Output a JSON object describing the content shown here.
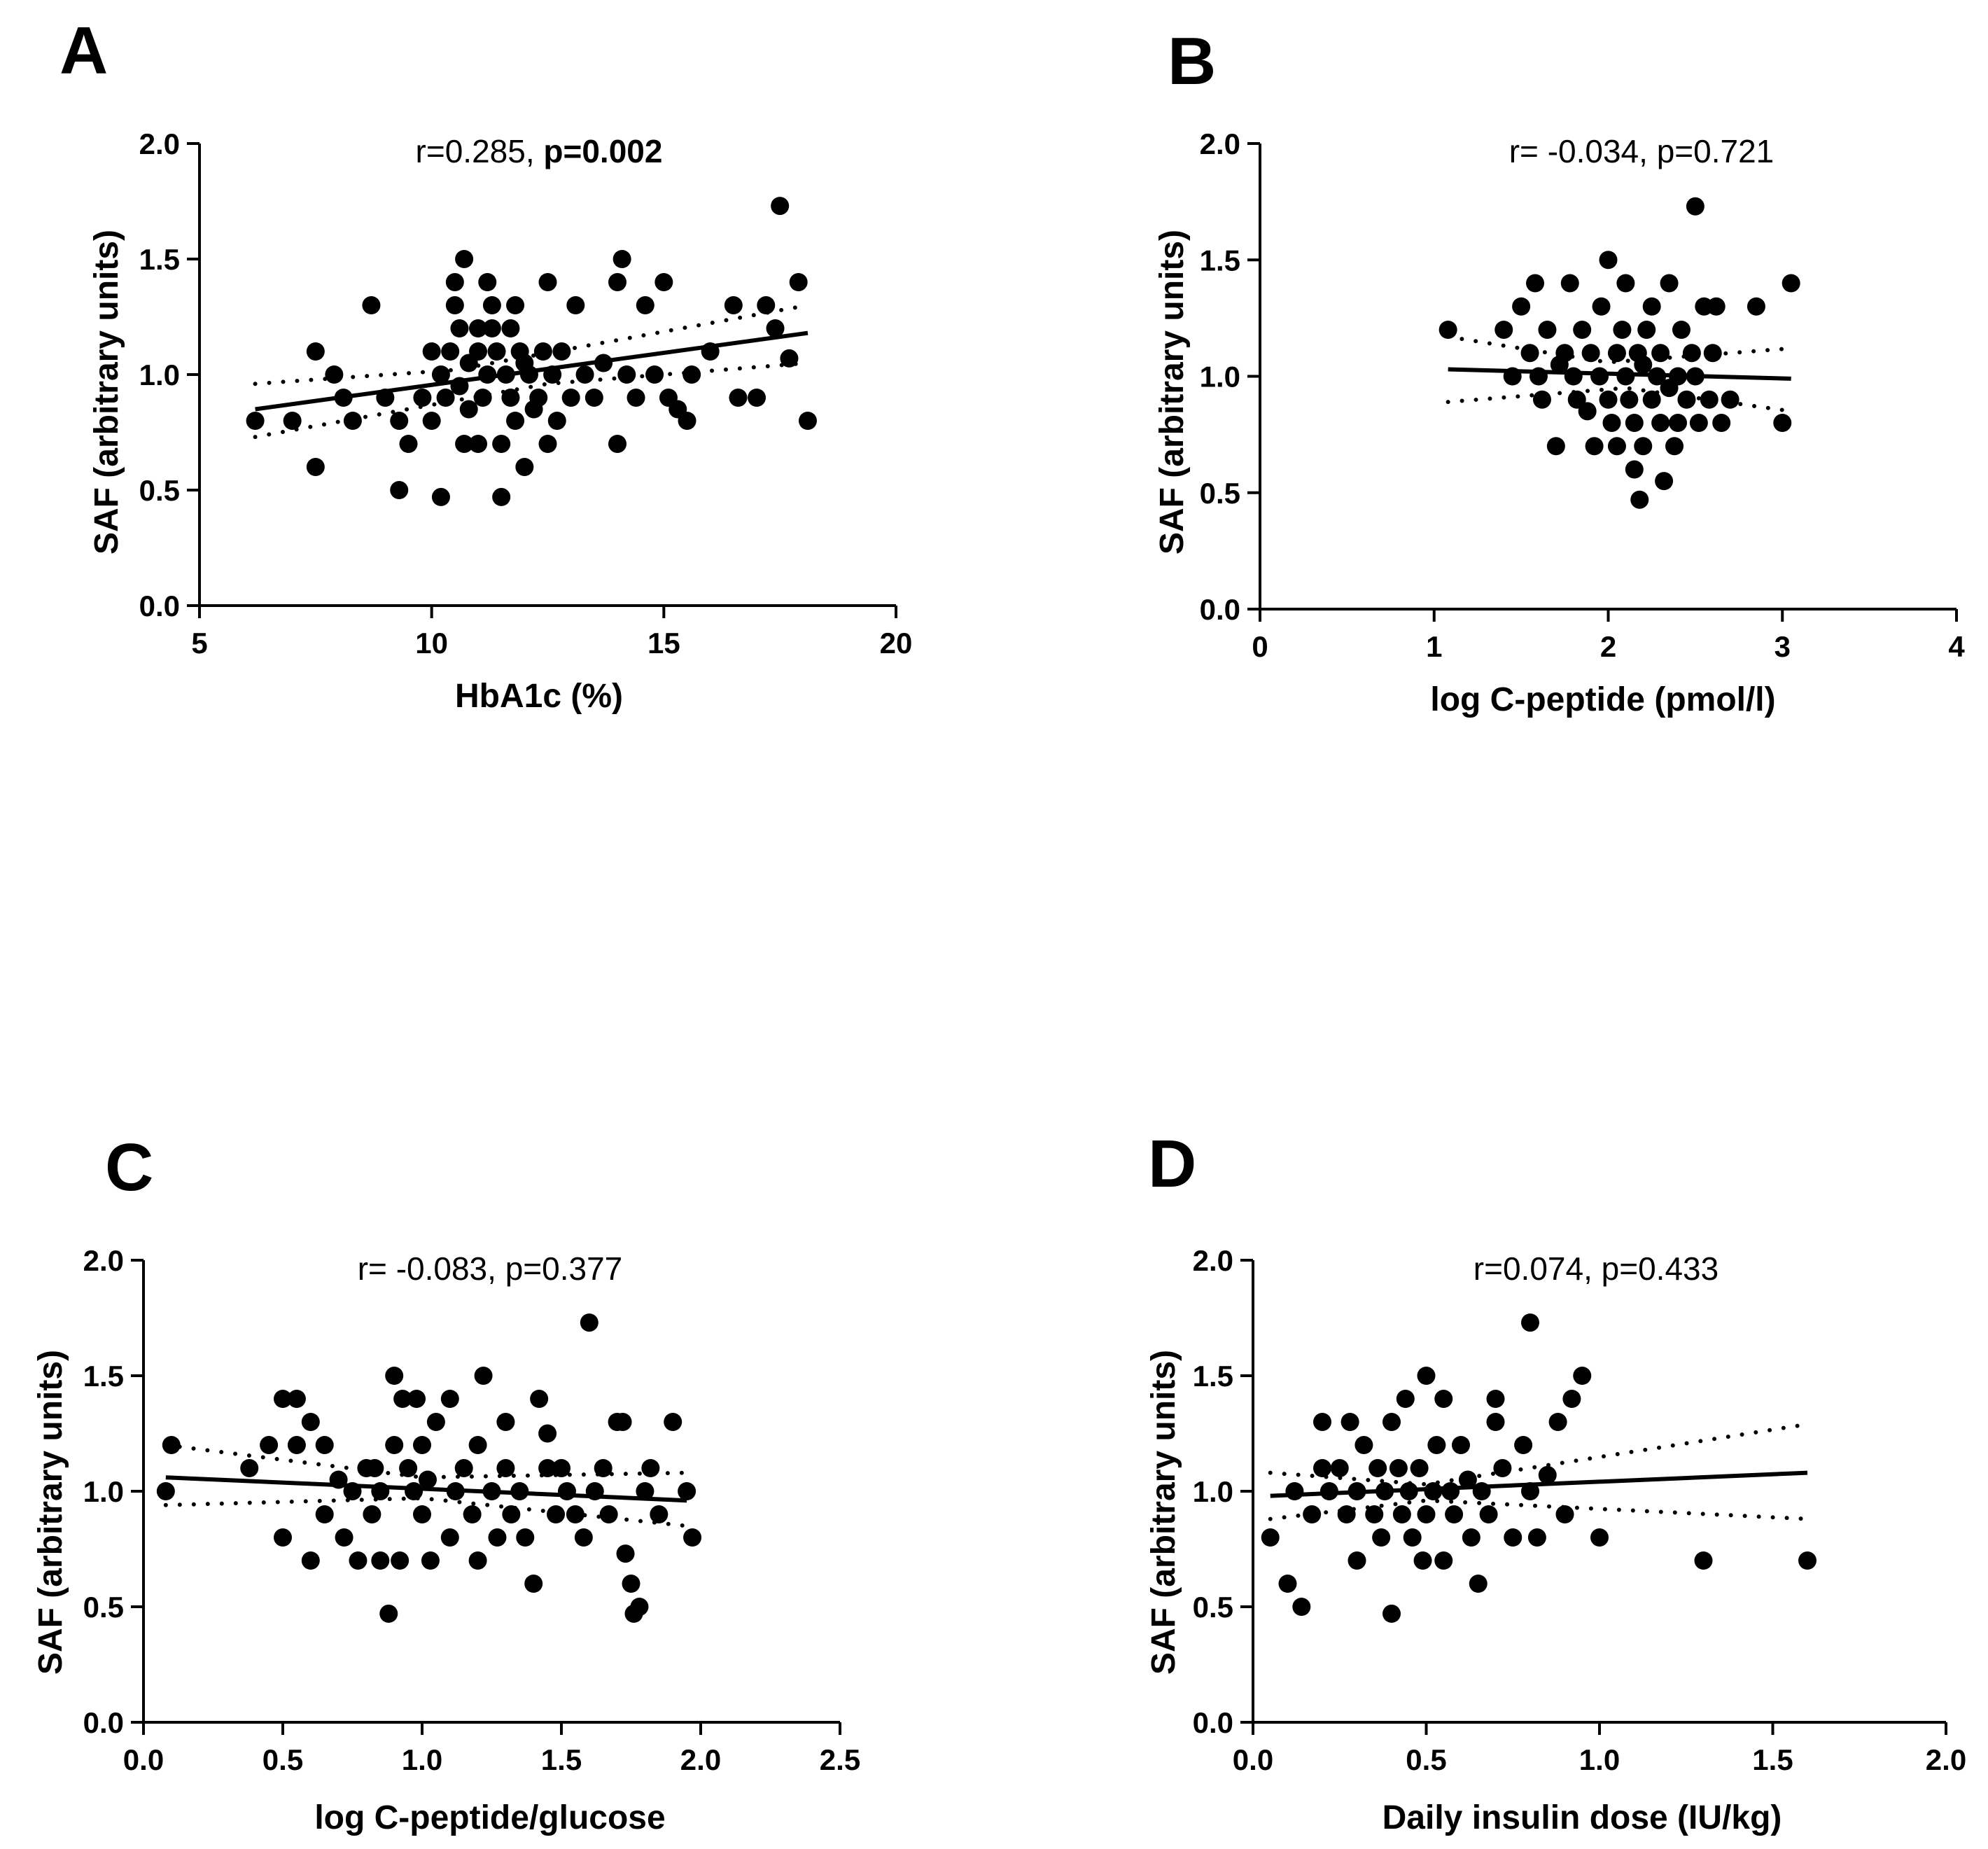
{
  "chart_data": [
    {
      "panel": "A",
      "type": "scatter",
      "stat": {
        "r_text": "r=0.285, ",
        "p_text": "p=0.002",
        "p_bold": true
      },
      "xlabel": "HbA1c (%)",
      "ylabel": "SAF (arbitrary units)",
      "xlim": [
        5,
        20
      ],
      "ylim": [
        0,
        2
      ],
      "xticks": [
        "5",
        "10",
        "15",
        "20"
      ],
      "yticks": [
        "0.0",
        "0.5",
        "1.0",
        "1.5",
        "2.0"
      ],
      "fit": {
        "x": [
          6.2,
          18.1
        ],
        "y": [
          0.85,
          1.18
        ]
      },
      "ci_upper": {
        "x": [
          6.2,
          10.5,
          18.1
        ],
        "y": [
          0.96,
          1.02,
          1.3
        ]
      },
      "ci_lower": {
        "x": [
          6.2,
          12.5,
          18.1
        ],
        "y": [
          0.73,
          0.96,
          1.05
        ]
      },
      "points": [
        [
          6.2,
          0.8
        ],
        [
          7.0,
          0.8
        ],
        [
          7.5,
          0.6
        ],
        [
          7.5,
          1.1
        ],
        [
          7.9,
          1.0
        ],
        [
          8.1,
          0.9
        ],
        [
          8.3,
          0.8
        ],
        [
          8.7,
          1.3
        ],
        [
          9.0,
          0.9
        ],
        [
          9.3,
          0.5
        ],
        [
          9.5,
          0.7
        ],
        [
          9.3,
          0.8
        ],
        [
          9.8,
          0.9
        ],
        [
          10.0,
          1.1
        ],
        [
          10.0,
          0.8
        ],
        [
          10.2,
          0.47
        ],
        [
          10.2,
          1.0
        ],
        [
          10.3,
          0.9
        ],
        [
          10.4,
          1.1
        ],
        [
          10.5,
          1.3
        ],
        [
          10.5,
          1.4
        ],
        [
          10.6,
          1.2
        ],
        [
          10.6,
          0.95
        ],
        [
          10.7,
          1.5
        ],
        [
          10.7,
          0.7
        ],
        [
          10.8,
          1.05
        ],
        [
          10.8,
          0.85
        ],
        [
          11.0,
          1.1
        ],
        [
          11.0,
          1.2
        ],
        [
          11.0,
          0.7
        ],
        [
          11.1,
          0.9
        ],
        [
          11.2,
          1.0
        ],
        [
          11.2,
          1.4
        ],
        [
          11.3,
          1.3
        ],
        [
          11.3,
          1.2
        ],
        [
          11.4,
          1.1
        ],
        [
          11.5,
          0.7
        ],
        [
          11.5,
          0.47
        ],
        [
          11.6,
          1.0
        ],
        [
          11.7,
          1.2
        ],
        [
          11.7,
          0.9
        ],
        [
          11.8,
          0.8
        ],
        [
          11.8,
          1.3
        ],
        [
          11.9,
          1.1
        ],
        [
          12.0,
          1.05
        ],
        [
          12.0,
          0.6
        ],
        [
          12.1,
          1.0
        ],
        [
          12.2,
          0.85
        ],
        [
          12.3,
          0.9
        ],
        [
          12.4,
          1.1
        ],
        [
          12.5,
          1.4
        ],
        [
          12.5,
          0.7
        ],
        [
          12.6,
          1.0
        ],
        [
          12.7,
          0.8
        ],
        [
          12.8,
          1.1
        ],
        [
          13.0,
          0.9
        ],
        [
          13.1,
          1.3
        ],
        [
          13.3,
          1.0
        ],
        [
          13.5,
          0.9
        ],
        [
          13.7,
          1.05
        ],
        [
          14.0,
          1.4
        ],
        [
          14.0,
          0.7
        ],
        [
          14.1,
          1.5
        ],
        [
          14.2,
          1.0
        ],
        [
          14.4,
          0.9
        ],
        [
          14.6,
          1.3
        ],
        [
          14.8,
          1.0
        ],
        [
          15.0,
          1.4
        ],
        [
          15.1,
          0.9
        ],
        [
          15.3,
          0.85
        ],
        [
          15.5,
          0.8
        ],
        [
          15.6,
          1.0
        ],
        [
          16.0,
          1.1
        ],
        [
          16.5,
          1.3
        ],
        [
          16.6,
          0.9
        ],
        [
          17.0,
          0.9
        ],
        [
          17.2,
          1.3
        ],
        [
          17.4,
          1.2
        ],
        [
          17.5,
          1.73
        ],
        [
          17.7,
          1.07
        ],
        [
          17.9,
          1.4
        ],
        [
          18.1,
          0.8
        ]
      ]
    },
    {
      "panel": "B",
      "type": "scatter",
      "stat": {
        "r_text": "r= -0.034, ",
        "p_text": "p=0.721",
        "p_bold": false
      },
      "xlabel": "log C-peptide (pmol/l)",
      "ylabel": "SAF (arbitrary units)",
      "xlim": [
        0,
        4
      ],
      "ylim": [
        0,
        2
      ],
      "xticks": [
        "0",
        "1",
        "2",
        "3",
        "4"
      ],
      "yticks": [
        "0.0",
        "0.5",
        "1.0",
        "1.5",
        "2.0"
      ],
      "fit": {
        "x": [
          1.08,
          3.05
        ],
        "y": [
          1.03,
          0.99
        ]
      },
      "ci_upper": {
        "x": [
          1.08,
          2.0,
          3.05
        ],
        "y": [
          1.17,
          1.06,
          1.12
        ]
      },
      "ci_lower": {
        "x": [
          1.08,
          2.1,
          3.05
        ],
        "y": [
          0.89,
          0.95,
          0.85
        ]
      },
      "points": [
        [
          1.08,
          1.2
        ],
        [
          1.4,
          1.2
        ],
        [
          1.45,
          1.0
        ],
        [
          1.5,
          1.3
        ],
        [
          1.55,
          1.1
        ],
        [
          1.58,
          1.4
        ],
        [
          1.6,
          1.0
        ],
        [
          1.62,
          0.9
        ],
        [
          1.65,
          1.2
        ],
        [
          1.7,
          0.7
        ],
        [
          1.72,
          1.05
        ],
        [
          1.75,
          1.1
        ],
        [
          1.78,
          1.4
        ],
        [
          1.8,
          1.0
        ],
        [
          1.82,
          0.9
        ],
        [
          1.85,
          1.2
        ],
        [
          1.88,
          0.85
        ],
        [
          1.9,
          1.1
        ],
        [
          1.92,
          0.7
        ],
        [
          1.95,
          1.0
        ],
        [
          1.96,
          1.3
        ],
        [
          2.0,
          1.5
        ],
        [
          2.0,
          0.9
        ],
        [
          2.02,
          0.8
        ],
        [
          2.05,
          1.1
        ],
        [
          2.05,
          0.7
        ],
        [
          2.08,
          1.2
        ],
        [
          2.1,
          1.4
        ],
        [
          2.1,
          1.0
        ],
        [
          2.12,
          0.9
        ],
        [
          2.15,
          0.8
        ],
        [
          2.15,
          0.6
        ],
        [
          2.17,
          1.1
        ],
        [
          2.18,
          0.47
        ],
        [
          2.2,
          1.05
        ],
        [
          2.2,
          0.7
        ],
        [
          2.22,
          1.2
        ],
        [
          2.25,
          0.9
        ],
        [
          2.25,
          1.3
        ],
        [
          2.28,
          1.0
        ],
        [
          2.3,
          0.8
        ],
        [
          2.3,
          1.1
        ],
        [
          2.32,
          0.55
        ],
        [
          2.35,
          1.4
        ],
        [
          2.35,
          0.95
        ],
        [
          2.38,
          0.7
        ],
        [
          2.4,
          1.0
        ],
        [
          2.4,
          0.8
        ],
        [
          2.42,
          1.2
        ],
        [
          2.45,
          0.9
        ],
        [
          2.48,
          1.1
        ],
        [
          2.5,
          1.73
        ],
        [
          2.5,
          1.0
        ],
        [
          2.52,
          0.8
        ],
        [
          2.55,
          1.3
        ],
        [
          2.58,
          0.9
        ],
        [
          2.6,
          1.1
        ],
        [
          2.62,
          1.3
        ],
        [
          2.65,
          0.8
        ],
        [
          2.7,
          0.9
        ],
        [
          2.85,
          1.3
        ],
        [
          3.0,
          0.8
        ],
        [
          3.05,
          1.4
        ]
      ]
    },
    {
      "panel": "C",
      "type": "scatter",
      "stat": {
        "r_text": "r= -0.083, ",
        "p_text": "p=0.377",
        "p_bold": false
      },
      "xlabel": "log C-peptide/glucose",
      "ylabel": "SAF (arbitrary units)",
      "xlim": [
        0,
        2.5
      ],
      "ylim": [
        0,
        2
      ],
      "xticks": [
        "0.0",
        "0.5",
        "1.0",
        "1.5",
        "2.0",
        "2.5"
      ],
      "yticks": [
        "0.0",
        "0.5",
        "1.0",
        "1.5",
        "2.0"
      ],
      "fit": {
        "x": [
          0.08,
          1.95
        ],
        "y": [
          1.06,
          0.96
        ]
      },
      "ci_upper": {
        "x": [
          0.08,
          1.0,
          1.95
        ],
        "y": [
          1.2,
          1.06,
          1.08
        ]
      },
      "ci_lower": {
        "x": [
          0.08,
          1.0,
          1.95
        ],
        "y": [
          0.94,
          0.97,
          0.85
        ]
      },
      "points": [
        [
          0.08,
          1.0
        ],
        [
          0.1,
          1.2
        ],
        [
          0.38,
          1.1
        ],
        [
          0.45,
          1.2
        ],
        [
          0.5,
          1.4
        ],
        [
          0.5,
          0.8
        ],
        [
          0.55,
          1.4
        ],
        [
          0.55,
          1.2
        ],
        [
          0.6,
          1.3
        ],
        [
          0.6,
          0.7
        ],
        [
          0.65,
          1.2
        ],
        [
          0.65,
          0.9
        ],
        [
          0.7,
          1.05
        ],
        [
          0.72,
          0.8
        ],
        [
          0.75,
          1.0
        ],
        [
          0.77,
          0.7
        ],
        [
          0.8,
          1.1
        ],
        [
          0.82,
          0.9
        ],
        [
          0.83,
          1.1
        ],
        [
          0.85,
          0.7
        ],
        [
          0.85,
          1.0
        ],
        [
          0.88,
          0.47
        ],
        [
          0.9,
          1.5
        ],
        [
          0.9,
          1.2
        ],
        [
          0.92,
          0.7
        ],
        [
          0.93,
          1.4
        ],
        [
          0.95,
          1.1
        ],
        [
          0.97,
          1.0
        ],
        [
          0.98,
          1.4
        ],
        [
          1.0,
          0.9
        ],
        [
          1.0,
          1.2
        ],
        [
          1.02,
          1.05
        ],
        [
          1.03,
          0.7
        ],
        [
          1.05,
          1.3
        ],
        [
          1.1,
          1.4
        ],
        [
          1.1,
          0.8
        ],
        [
          1.12,
          1.0
        ],
        [
          1.15,
          1.1
        ],
        [
          1.18,
          0.9
        ],
        [
          1.2,
          1.2
        ],
        [
          1.2,
          0.7
        ],
        [
          1.22,
          1.5
        ],
        [
          1.25,
          1.0
        ],
        [
          1.27,
          0.8
        ],
        [
          1.3,
          1.1
        ],
        [
          1.3,
          1.3
        ],
        [
          1.32,
          0.9
        ],
        [
          1.35,
          1.0
        ],
        [
          1.37,
          0.8
        ],
        [
          1.4,
          0.6
        ],
        [
          1.42,
          1.4
        ],
        [
          1.45,
          1.1
        ],
        [
          1.45,
          1.25
        ],
        [
          1.48,
          0.9
        ],
        [
          1.5,
          1.1
        ],
        [
          1.52,
          1.0
        ],
        [
          1.55,
          0.9
        ],
        [
          1.58,
          0.8
        ],
        [
          1.6,
          1.73
        ],
        [
          1.62,
          1.0
        ],
        [
          1.65,
          1.1
        ],
        [
          1.67,
          0.9
        ],
        [
          1.7,
          1.3
        ],
        [
          1.72,
          1.3
        ],
        [
          1.73,
          0.73
        ],
        [
          1.75,
          0.6
        ],
        [
          1.76,
          0.47
        ],
        [
          1.78,
          0.5
        ],
        [
          1.8,
          1.0
        ],
        [
          1.82,
          1.1
        ],
        [
          1.85,
          0.9
        ],
        [
          1.9,
          1.3
        ],
        [
          1.95,
          1.0
        ],
        [
          1.97,
          0.8
        ]
      ]
    },
    {
      "panel": "D",
      "type": "scatter",
      "stat": {
        "r_text": "r=0.074, ",
        "p_text": "p=0.433",
        "p_bold": false
      },
      "xlabel": "Daily insulin dose (IU/kg)",
      "ylabel": "SAF (arbitrary units)",
      "xlim": [
        0,
        2
      ],
      "ylim": [
        0,
        2
      ],
      "xticks": [
        "0.0",
        "0.5",
        "1.0",
        "1.5",
        "2.0"
      ],
      "yticks": [
        "0.0",
        "0.5",
        "1.0",
        "1.5",
        "2.0"
      ],
      "fit": {
        "x": [
          0.05,
          1.6
        ],
        "y": [
          0.98,
          1.08
        ]
      },
      "ci_upper": {
        "x": [
          0.05,
          0.5,
          1.6
        ],
        "y": [
          1.08,
          1.03,
          1.29
        ]
      },
      "ci_lower": {
        "x": [
          0.05,
          0.5,
          1.6
        ],
        "y": [
          0.88,
          0.96,
          0.88
        ]
      },
      "points": [
        [
          0.05,
          0.8
        ],
        [
          0.1,
          0.6
        ],
        [
          0.12,
          1.0
        ],
        [
          0.14,
          0.5
        ],
        [
          0.17,
          0.9
        ],
        [
          0.2,
          1.1
        ],
        [
          0.2,
          1.3
        ],
        [
          0.22,
          1.0
        ],
        [
          0.25,
          1.1
        ],
        [
          0.27,
          0.9
        ],
        [
          0.28,
          1.3
        ],
        [
          0.3,
          0.7
        ],
        [
          0.3,
          1.0
        ],
        [
          0.32,
          1.2
        ],
        [
          0.35,
          0.9
        ],
        [
          0.36,
          1.1
        ],
        [
          0.37,
          0.8
        ],
        [
          0.38,
          1.0
        ],
        [
          0.4,
          0.47
        ],
        [
          0.4,
          1.3
        ],
        [
          0.42,
          1.1
        ],
        [
          0.43,
          0.9
        ],
        [
          0.44,
          1.4
        ],
        [
          0.45,
          1.0
        ],
        [
          0.46,
          0.8
        ],
        [
          0.48,
          1.1
        ],
        [
          0.49,
          0.7
        ],
        [
          0.5,
          1.5
        ],
        [
          0.5,
          0.9
        ],
        [
          0.52,
          1.0
        ],
        [
          0.53,
          1.2
        ],
        [
          0.55,
          0.7
        ],
        [
          0.55,
          1.4
        ],
        [
          0.57,
          1.0
        ],
        [
          0.58,
          0.9
        ],
        [
          0.6,
          1.2
        ],
        [
          0.62,
          1.05
        ],
        [
          0.63,
          0.8
        ],
        [
          0.65,
          0.6
        ],
        [
          0.66,
          1.0
        ],
        [
          0.68,
          0.9
        ],
        [
          0.7,
          1.3
        ],
        [
          0.7,
          1.4
        ],
        [
          0.72,
          1.1
        ],
        [
          0.75,
          0.8
        ],
        [
          0.78,
          1.2
        ],
        [
          0.8,
          1.73
        ],
        [
          0.8,
          1.0
        ],
        [
          0.82,
          0.8
        ],
        [
          0.85,
          1.07
        ],
        [
          0.88,
          1.3
        ],
        [
          0.9,
          0.9
        ],
        [
          0.92,
          1.4
        ],
        [
          0.95,
          1.5
        ],
        [
          1.0,
          0.8
        ],
        [
          1.3,
          0.7
        ],
        [
          1.6,
          0.7
        ]
      ]
    }
  ]
}
